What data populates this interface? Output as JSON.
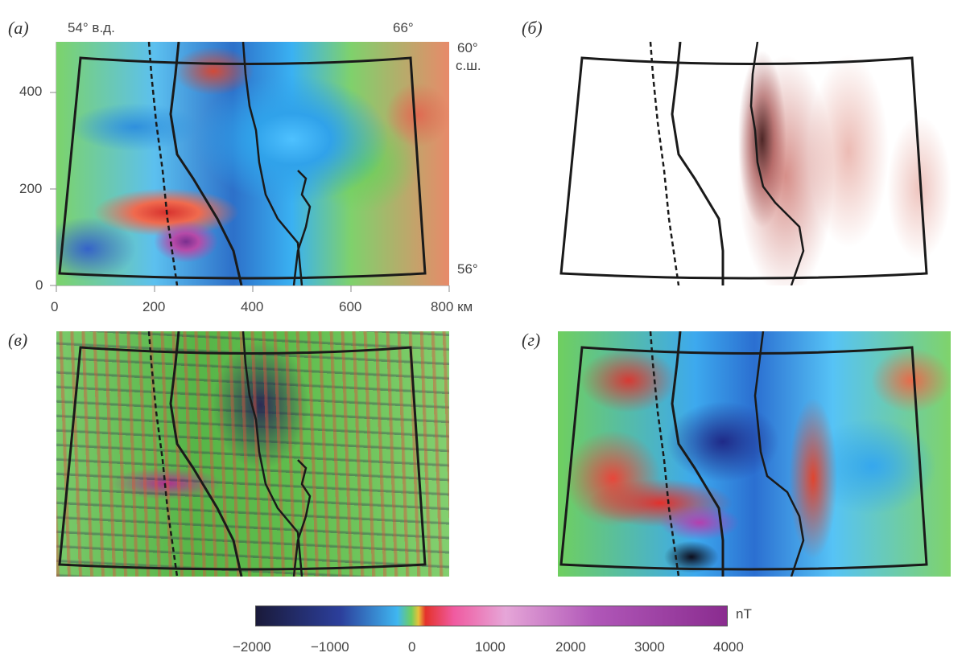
{
  "panels": [
    {
      "id": "a",
      "label": "(а)"
    },
    {
      "id": "b",
      "label": "(б)"
    },
    {
      "id": "c",
      "label": "(в)"
    },
    {
      "id": "d",
      "label": "(г)"
    }
  ],
  "panel_a": {
    "lon_labels": [
      "54° в.д.",
      "66°"
    ],
    "lat_labels": [
      "60°",
      "с.ш.",
      "56°"
    ],
    "y_axis_ticks": [
      "400",
      "200",
      "0"
    ],
    "x_axis_ticks": [
      "0",
      "200",
      "400",
      "600",
      "800 км"
    ]
  },
  "colorbar": {
    "unit": "nT",
    "ticks": [
      "−2000",
      "−1000",
      "0",
      "1000",
      "2000",
      "3000",
      "4000"
    ],
    "colors": [
      "#1a1a3a",
      "#2c3f9c",
      "#3fb6f0",
      "#6fcf5f",
      "#e9c13a",
      "#e4322b",
      "#f05aa0",
      "#e6a6d8",
      "#b057b8",
      "#8a2c8f"
    ]
  }
}
